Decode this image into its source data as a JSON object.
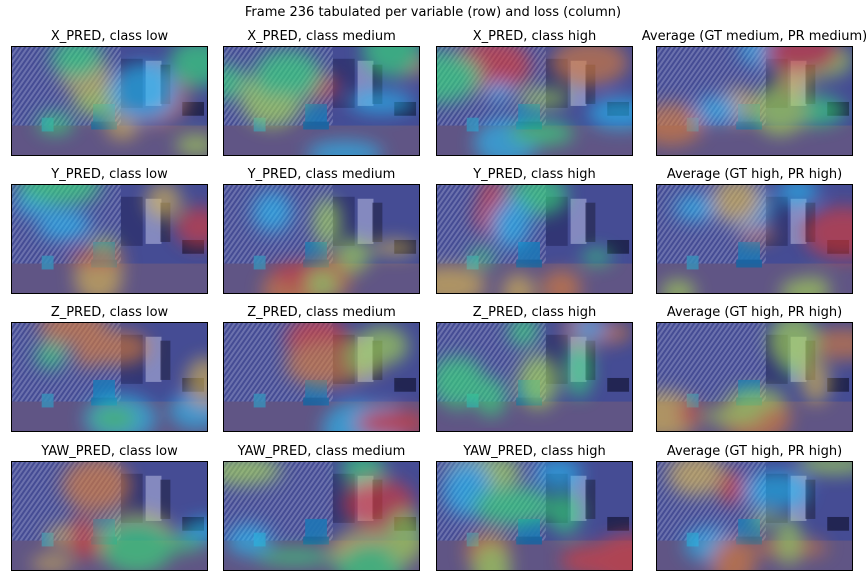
{
  "figure": {
    "title": "Frame 236 tabulated per variable (row) and loss (column)"
  },
  "rows": [
    {
      "variable": "X_PRED",
      "panels": [
        {
          "title": "X_PRED, class low"
        },
        {
          "title": "X_PRED, class medium"
        },
        {
          "title": "X_PRED, class high"
        },
        {
          "title": "Average (GT medium, PR medium)"
        }
      ]
    },
    {
      "variable": "Y_PRED",
      "panels": [
        {
          "title": "Y_PRED, class low"
        },
        {
          "title": "Y_PRED, class medium"
        },
        {
          "title": "Y_PRED, class high"
        },
        {
          "title": "Average (GT high, PR high)"
        }
      ]
    },
    {
      "variable": "Z_PRED",
      "panels": [
        {
          "title": "Z_PRED, class low"
        },
        {
          "title": "Z_PRED, class medium"
        },
        {
          "title": "Z_PRED, class high"
        },
        {
          "title": "Average (GT high, PR high)"
        }
      ]
    },
    {
      "variable": "YAW_PRED",
      "panels": [
        {
          "title": "YAW_PRED, class low"
        },
        {
          "title": "YAW_PRED, class medium"
        },
        {
          "title": "YAW_PRED, class high"
        },
        {
          "title": "Average (GT high, PR high)"
        }
      ]
    }
  ]
}
